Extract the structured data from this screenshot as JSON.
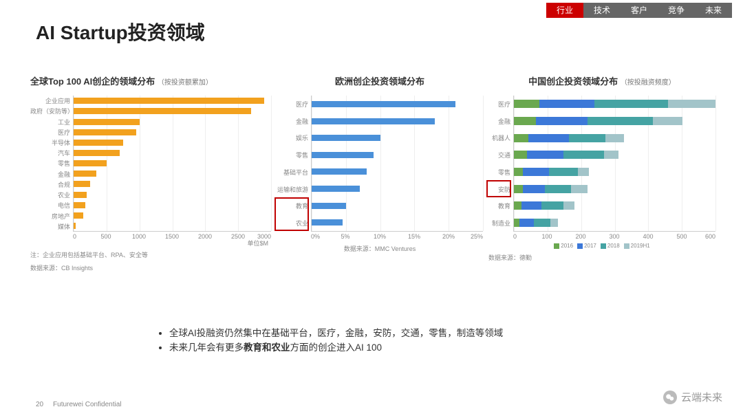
{
  "nav": {
    "items": [
      "行业",
      "技术",
      "客户",
      "竞争",
      "未来"
    ],
    "active": 0,
    "active_bg": "#c00000",
    "bg": "#666666"
  },
  "title": "AI Startup投资领域",
  "bullets": [
    "全球AI投融资仍然集中在基础平台，医疗，金融，安防，交通，零售，制造等领域",
    "未来几年会有更多<b>教育和农业</b>方面的创企进入AI 100"
  ],
  "footer": {
    "page": "20",
    "label": "Futurewei Confidential"
  },
  "watermark": "云端未来",
  "chart1": {
    "type": "horizontal-bar",
    "title": "全球Top 100 AI创企的领域分布",
    "subtitle": "（按投资额累加）",
    "categories": [
      "企业应用",
      "政府（安防等）",
      "工业",
      "医疗",
      "半导体",
      "汽车",
      "零售",
      "金融",
      "合规",
      "农业",
      "电信",
      "房地产",
      "媒体"
    ],
    "values": [
      2900,
      2700,
      1000,
      950,
      750,
      700,
      500,
      350,
      250,
      200,
      180,
      150,
      30
    ],
    "bar_color": "#f2a11e",
    "xmax": 3000,
    "xtick_step": 500,
    "unit_label": "单位$M",
    "note": "注：企业应用包括基础平台、RPA、安全等",
    "source": "数据来源：CB Insights",
    "label_fontsize": 9,
    "grid_color": "#eeeeee"
  },
  "chart2": {
    "type": "horizontal-bar",
    "title": "欧洲创企投资领域分布",
    "subtitle": "",
    "categories": [
      "医疗",
      "金融",
      "娱乐",
      "零售",
      "基础平台",
      "运输和旅游",
      "教育",
      "农业"
    ],
    "values": [
      21,
      18,
      10,
      9,
      8,
      7,
      5,
      4.5
    ],
    "bar_color": "#4a90d9",
    "xmax": 25,
    "xtick_step": 5,
    "x_suffix": "%",
    "source": "数据来源：MMC Ventures",
    "highlight_indices": [
      6,
      7
    ],
    "highlight_color": "#c00000",
    "label_fontsize": 9,
    "grid_color": "#eeeeee"
  },
  "chart3": {
    "type": "stacked-horizontal-bar",
    "title": "中国创企投资领域分布",
    "subtitle": "（按投融资频度）",
    "categories": [
      "医疗",
      "金融",
      "机器人",
      "交通",
      "零售",
      "安防",
      "教育",
      "制造业"
    ],
    "series_names": [
      "2016",
      "2017",
      "2018",
      "2019H1"
    ],
    "series_colors": [
      "#6aa84f",
      "#3c78d8",
      "#45a3a3",
      "#a2c4c9"
    ],
    "data": [
      [
        70,
        150,
        200,
        130
      ],
      [
        60,
        140,
        180,
        80
      ],
      [
        40,
        110,
        100,
        50
      ],
      [
        35,
        100,
        110,
        40
      ],
      [
        25,
        70,
        80,
        30
      ],
      [
        25,
        60,
        70,
        45
      ],
      [
        20,
        55,
        60,
        30
      ],
      [
        15,
        40,
        45,
        20
      ]
    ],
    "xmax": 550,
    "xtick_step": 100,
    "source": "数据来源：德勤",
    "highlight_indices": [
      5
    ],
    "highlight_color": "#c00000",
    "label_fontsize": 9,
    "grid_color": "#eeeeee"
  }
}
